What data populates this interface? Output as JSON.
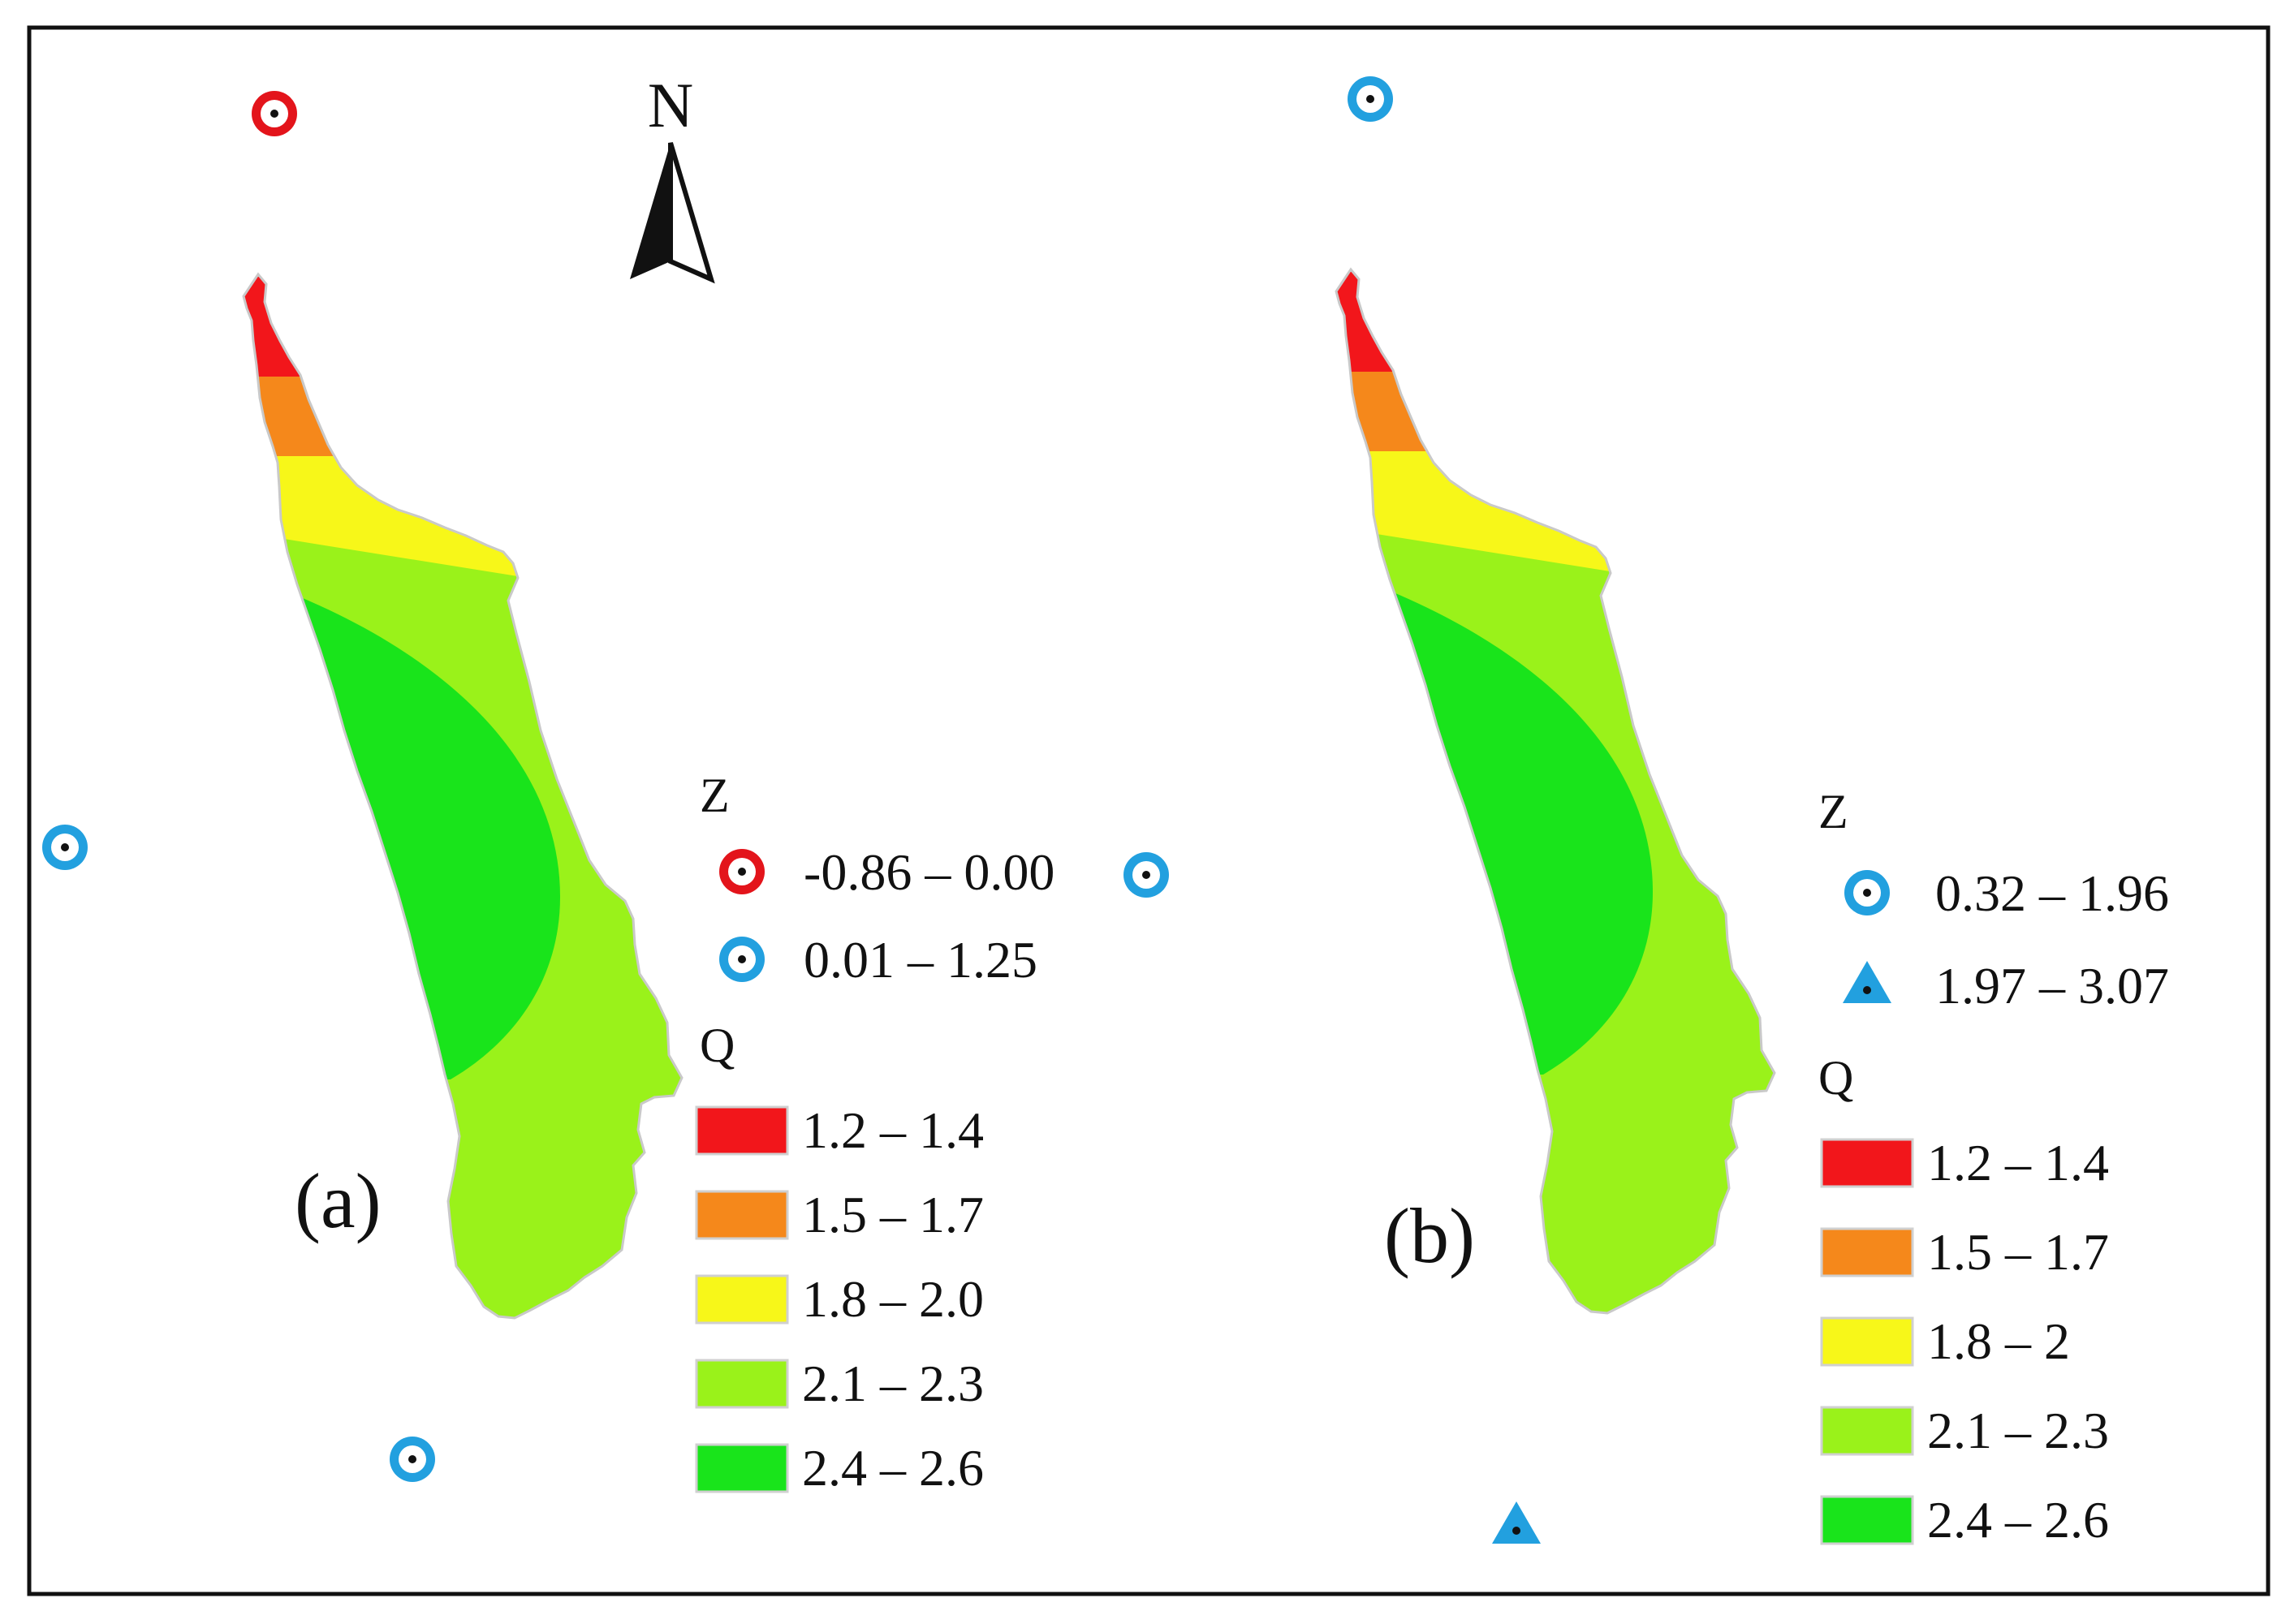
{
  "compass": {
    "label": "N",
    "icon": "north-arrow-icon"
  },
  "panels": [
    {
      "id": "a",
      "label": "(a)",
      "z_title": "Z",
      "z_legend": [
        {
          "range": "-0.86 – 0.00",
          "symbol": "circle",
          "color": "#e3141b"
        },
        {
          "range": "0.01 – 1.25",
          "symbol": "circle",
          "color": "#22a0df"
        }
      ],
      "q_title": "Q",
      "q_legend": [
        {
          "range": "1.2 – 1.4",
          "color": "#f2161b"
        },
        {
          "range": "1.5 – 1.7",
          "color": "#f5881b"
        },
        {
          "range": "1.8 – 2.0",
          "color": "#f7f719"
        },
        {
          "range": "2.1 – 2.3",
          "color": "#9af21a"
        },
        {
          "range": "2.4 – 2.6",
          "color": "#19e41b"
        }
      ]
    },
    {
      "id": "b",
      "label": "(b)",
      "z_title": "Z",
      "z_legend": [
        {
          "range": "0.32 – 1.96",
          "symbol": "circle",
          "color": "#22a0df"
        },
        {
          "range": "1.97 – 3.07",
          "symbol": "triangle",
          "color": "#22a0df"
        }
      ],
      "q_title": "Q",
      "q_legend": [
        {
          "range": "1.2 – 1.4",
          "color": "#f2161b"
        },
        {
          "range": "1.5 – 1.7",
          "color": "#f5881b"
        },
        {
          "range": "1.8 – 2",
          "color": "#f7f719"
        },
        {
          "range": "2.1 – 2.3",
          "color": "#9af21a"
        },
        {
          "range": "2.4 – 2.6",
          "color": "#19e41b"
        }
      ]
    }
  ],
  "stations": {
    "a": [
      {
        "z_class": "-0.86 – 0.00"
      },
      {
        "z_class": "0.01 – 1.25"
      },
      {
        "z_class": "0.01 – 1.25"
      },
      {
        "z_class": "0.01 – 1.25"
      }
    ],
    "b": [
      {
        "z_class": "0.32 – 1.96"
      },
      {
        "z_class": "1.97 – 3.07"
      }
    ]
  }
}
